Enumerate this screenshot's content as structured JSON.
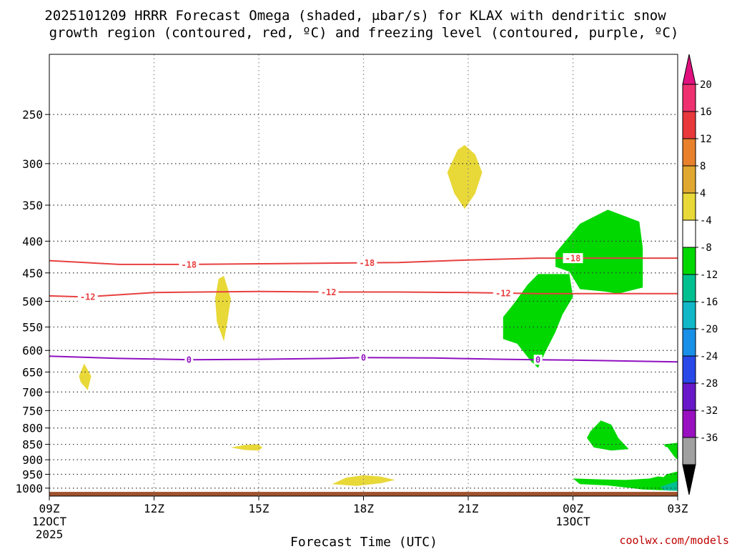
{
  "chart_data": {
    "type": "heatmap",
    "title_line1": "2025101209 HRRR Forecast Omega (shaded, μbar/s) for KLAX with dendritic snow",
    "title_line2": "growth region (contoured, red, ºC) and freezing level (contoured, purple, ºC)",
    "xlabel": "Forecast Time (UTC)",
    "credit": "coolwx.com/models",
    "x_ticks": [
      {
        "hour": 0,
        "label": "09Z",
        "sub1": "12OCT",
        "sub2": "2025"
      },
      {
        "hour": 3,
        "label": "12Z",
        "sub1": "",
        "sub2": ""
      },
      {
        "hour": 6,
        "label": "15Z",
        "sub1": "",
        "sub2": ""
      },
      {
        "hour": 9,
        "label": "18Z",
        "sub1": "",
        "sub2": ""
      },
      {
        "hour": 12,
        "label": "21Z",
        "sub1": "",
        "sub2": ""
      },
      {
        "hour": 15,
        "label": "00Z",
        "sub1": "13OCT",
        "sub2": ""
      },
      {
        "hour": 18,
        "label": "03Z",
        "sub1": "",
        "sub2": ""
      }
    ],
    "y_ticks": [
      250,
      300,
      350,
      400,
      450,
      500,
      550,
      600,
      650,
      700,
      750,
      800,
      850,
      900,
      950,
      1000
    ],
    "y_range_hpa": [
      200,
      1030
    ],
    "x_range_hours": [
      0,
      18
    ],
    "colorbar": {
      "labels": [
        "20",
        "16",
        "12",
        "8",
        "4",
        "-4",
        "-8",
        "-12",
        "-16",
        "-20",
        "-24",
        "-28",
        "-32",
        "-36"
      ],
      "colors": [
        "#ee3070",
        "#e8383c",
        "#e8802c",
        "#e0a830",
        "#e8d838",
        "#ffffff",
        "#00d800",
        "#00c090",
        "#10b8c8",
        "#1890e8",
        "#2848e8",
        "#6818c8",
        "#9810c0",
        "#a0a0a0"
      ],
      "top_arrow_color": "#e0107f",
      "bottom_arrow_color": "#000000"
    },
    "contours": [
      {
        "name": "dgz-minus-18",
        "label": "-18",
        "color": "#e84040",
        "points": [
          [
            0,
            430
          ],
          [
            2,
            436
          ],
          [
            4,
            436
          ],
          [
            6,
            435
          ],
          [
            8,
            434
          ],
          [
            10,
            433
          ],
          [
            12,
            429
          ],
          [
            14,
            426
          ],
          [
            16,
            426
          ],
          [
            18,
            426
          ]
        ],
        "label_hours": [
          4,
          9.1,
          15
        ]
      },
      {
        "name": "dgz-minus-12",
        "label": "-12",
        "color": "#e84040",
        "points": [
          [
            0,
            490
          ],
          [
            1,
            492
          ],
          [
            3,
            484
          ],
          [
            6,
            482
          ],
          [
            8,
            483
          ],
          [
            10,
            483
          ],
          [
            12,
            484
          ],
          [
            14,
            486
          ],
          [
            16,
            486
          ],
          [
            18,
            486
          ]
        ],
        "label_hours": [
          1.1,
          8,
          13
        ]
      },
      {
        "name": "freezing-level-0",
        "label": "0",
        "color": "#9010c0",
        "points": [
          [
            0,
            613
          ],
          [
            2,
            618
          ],
          [
            4,
            621
          ],
          [
            6,
            620
          ],
          [
            8,
            618
          ],
          [
            9,
            616
          ],
          [
            11,
            617
          ],
          [
            13,
            620
          ],
          [
            15,
            622
          ],
          [
            18,
            626
          ]
        ],
        "label_hours": [
          4,
          9,
          14
        ]
      }
    ],
    "omega_regions": [
      {
        "name": "yellow-upper-21z",
        "color": "#e8d838",
        "pts": [
          [
            11.4,
            310
          ],
          [
            11.7,
            285
          ],
          [
            11.9,
            280
          ],
          [
            12.2,
            290
          ],
          [
            12.4,
            310
          ],
          [
            12.2,
            335
          ],
          [
            11.9,
            355
          ],
          [
            11.6,
            335
          ]
        ]
      },
      {
        "name": "yellow-mid-14z",
        "color": "#e8d838",
        "pts": [
          [
            5.0,
            455
          ],
          [
            5.2,
            495
          ],
          [
            5.1,
            540
          ],
          [
            5.0,
            580
          ],
          [
            4.8,
            540
          ],
          [
            4.75,
            495
          ],
          [
            4.85,
            460
          ]
        ]
      },
      {
        "name": "yellow-10z",
        "color": "#e8d838",
        "pts": [
          [
            1.0,
            630
          ],
          [
            1.2,
            660
          ],
          [
            1.1,
            695
          ],
          [
            0.9,
            675
          ],
          [
            0.85,
            660
          ]
        ]
      },
      {
        "name": "yellow-850-15z",
        "color": "#e8d838",
        "pts": [
          [
            5.2,
            860
          ],
          [
            5.6,
            852
          ],
          [
            6.0,
            850
          ],
          [
            6.1,
            860
          ],
          [
            6.0,
            870
          ],
          [
            5.6,
            868
          ]
        ]
      },
      {
        "name": "yellow-sfc-18z",
        "color": "#e8d838",
        "pts": [
          [
            8.1,
            985
          ],
          [
            8.5,
            962
          ],
          [
            9.0,
            953
          ],
          [
            9.5,
            958
          ],
          [
            9.9,
            970
          ],
          [
            9.5,
            982
          ],
          [
            8.8,
            992
          ]
        ]
      },
      {
        "name": "green-upper-00z",
        "color": "#00d800",
        "pts": [
          [
            14.5,
            418
          ],
          [
            15.2,
            375
          ],
          [
            16.0,
            356
          ],
          [
            16.9,
            372
          ],
          [
            17.0,
            410
          ],
          [
            17.0,
            475
          ],
          [
            16.3,
            486
          ],
          [
            15.9,
            482
          ],
          [
            15.2,
            478
          ],
          [
            14.9,
            448
          ],
          [
            14.5,
            440
          ]
        ]
      },
      {
        "name": "green-mid-23z",
        "color": "#00d800",
        "pts": [
          [
            13.3,
            505
          ],
          [
            13.7,
            470
          ],
          [
            14.0,
            452
          ],
          [
            14.9,
            452
          ],
          [
            15.0,
            492
          ],
          [
            14.7,
            525
          ],
          [
            14.5,
            560
          ],
          [
            14.2,
            605
          ],
          [
            14.0,
            640
          ],
          [
            13.8,
            625
          ],
          [
            13.4,
            585
          ],
          [
            13.0,
            575
          ],
          [
            13.0,
            530
          ]
        ]
      },
      {
        "name": "green-800-01z",
        "color": "#00d800",
        "pts": [
          [
            15.5,
            810
          ],
          [
            15.8,
            778
          ],
          [
            16.1,
            790
          ],
          [
            16.3,
            830
          ],
          [
            16.6,
            865
          ],
          [
            16.1,
            870
          ],
          [
            15.6,
            860
          ],
          [
            15.4,
            830
          ]
        ]
      },
      {
        "name": "green-sfc-02z",
        "color": "#00d800",
        "pts": [
          [
            15.0,
            965
          ],
          [
            15.8,
            968
          ],
          [
            16.5,
            970
          ],
          [
            17.2,
            965
          ],
          [
            18.0,
            940
          ],
          [
            18.0,
            1010
          ],
          [
            17.0,
            1005
          ],
          [
            16.0,
            990
          ],
          [
            15.2,
            985
          ]
        ]
      },
      {
        "name": "green-850-03z",
        "color": "#00d800",
        "pts": [
          [
            17.6,
            850
          ],
          [
            18.0,
            845
          ],
          [
            18.0,
            900
          ],
          [
            17.8,
            880
          ]
        ]
      },
      {
        "name": "white-870-03z",
        "color": "#ffffff",
        "pts": [
          [
            16.6,
            880
          ],
          [
            17.3,
            870
          ],
          [
            17.7,
            858
          ],
          [
            18.0,
            905
          ],
          [
            17.6,
            960
          ],
          [
            17.0,
            950
          ]
        ]
      },
      {
        "name": "teal-sfc-03z",
        "color": "#00c090",
        "pts": [
          [
            17.5,
            995
          ],
          [
            17.9,
            978
          ],
          [
            18.0,
            975
          ],
          [
            18.0,
            1010
          ],
          [
            17.6,
            1008
          ]
        ]
      }
    ],
    "terrain": {
      "color": "#a0522d",
      "from_hpa": 1014
    }
  }
}
